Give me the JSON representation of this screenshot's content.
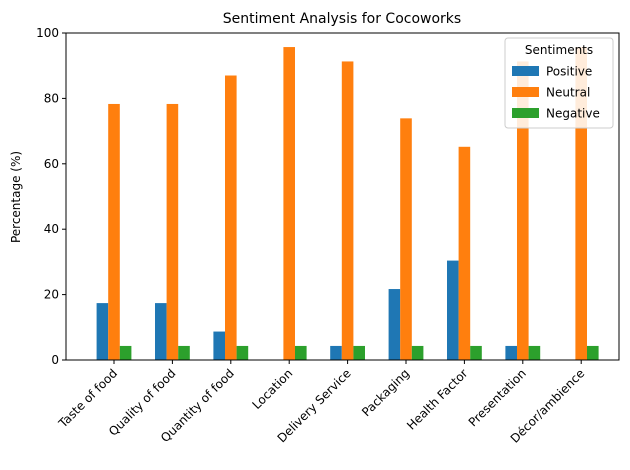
{
  "chart_data": {
    "type": "bar",
    "title": "Sentiment Analysis for Cocoworks",
    "xlabel": "",
    "ylabel": "Percentage (%)",
    "ylim": [
      0,
      100
    ],
    "yticks": [
      0,
      20,
      40,
      60,
      80,
      100
    ],
    "categories": [
      "Taste of food",
      "Quality of food",
      "Quantity of food",
      "Location",
      "Delivery Service",
      "Packaging",
      "Health Factor",
      "Presentation",
      "Décor/ambience"
    ],
    "series": [
      {
        "name": "Positive",
        "color": "#1f77b4",
        "values": [
          17.4,
          17.4,
          8.7,
          0,
          4.3,
          21.7,
          30.4,
          4.3,
          0
        ]
      },
      {
        "name": "Neutral",
        "color": "#ff7f0e",
        "values": [
          78.3,
          78.3,
          87.0,
          95.7,
          91.3,
          73.9,
          65.2,
          91.3,
          95.7
        ]
      },
      {
        "name": "Negative",
        "color": "#2ca02c",
        "values": [
          4.3,
          4.3,
          4.3,
          4.3,
          4.3,
          4.3,
          4.3,
          4.3,
          4.3
        ]
      }
    ],
    "legend": {
      "title": "Sentiments",
      "position": "top-right"
    },
    "grid": false
  }
}
